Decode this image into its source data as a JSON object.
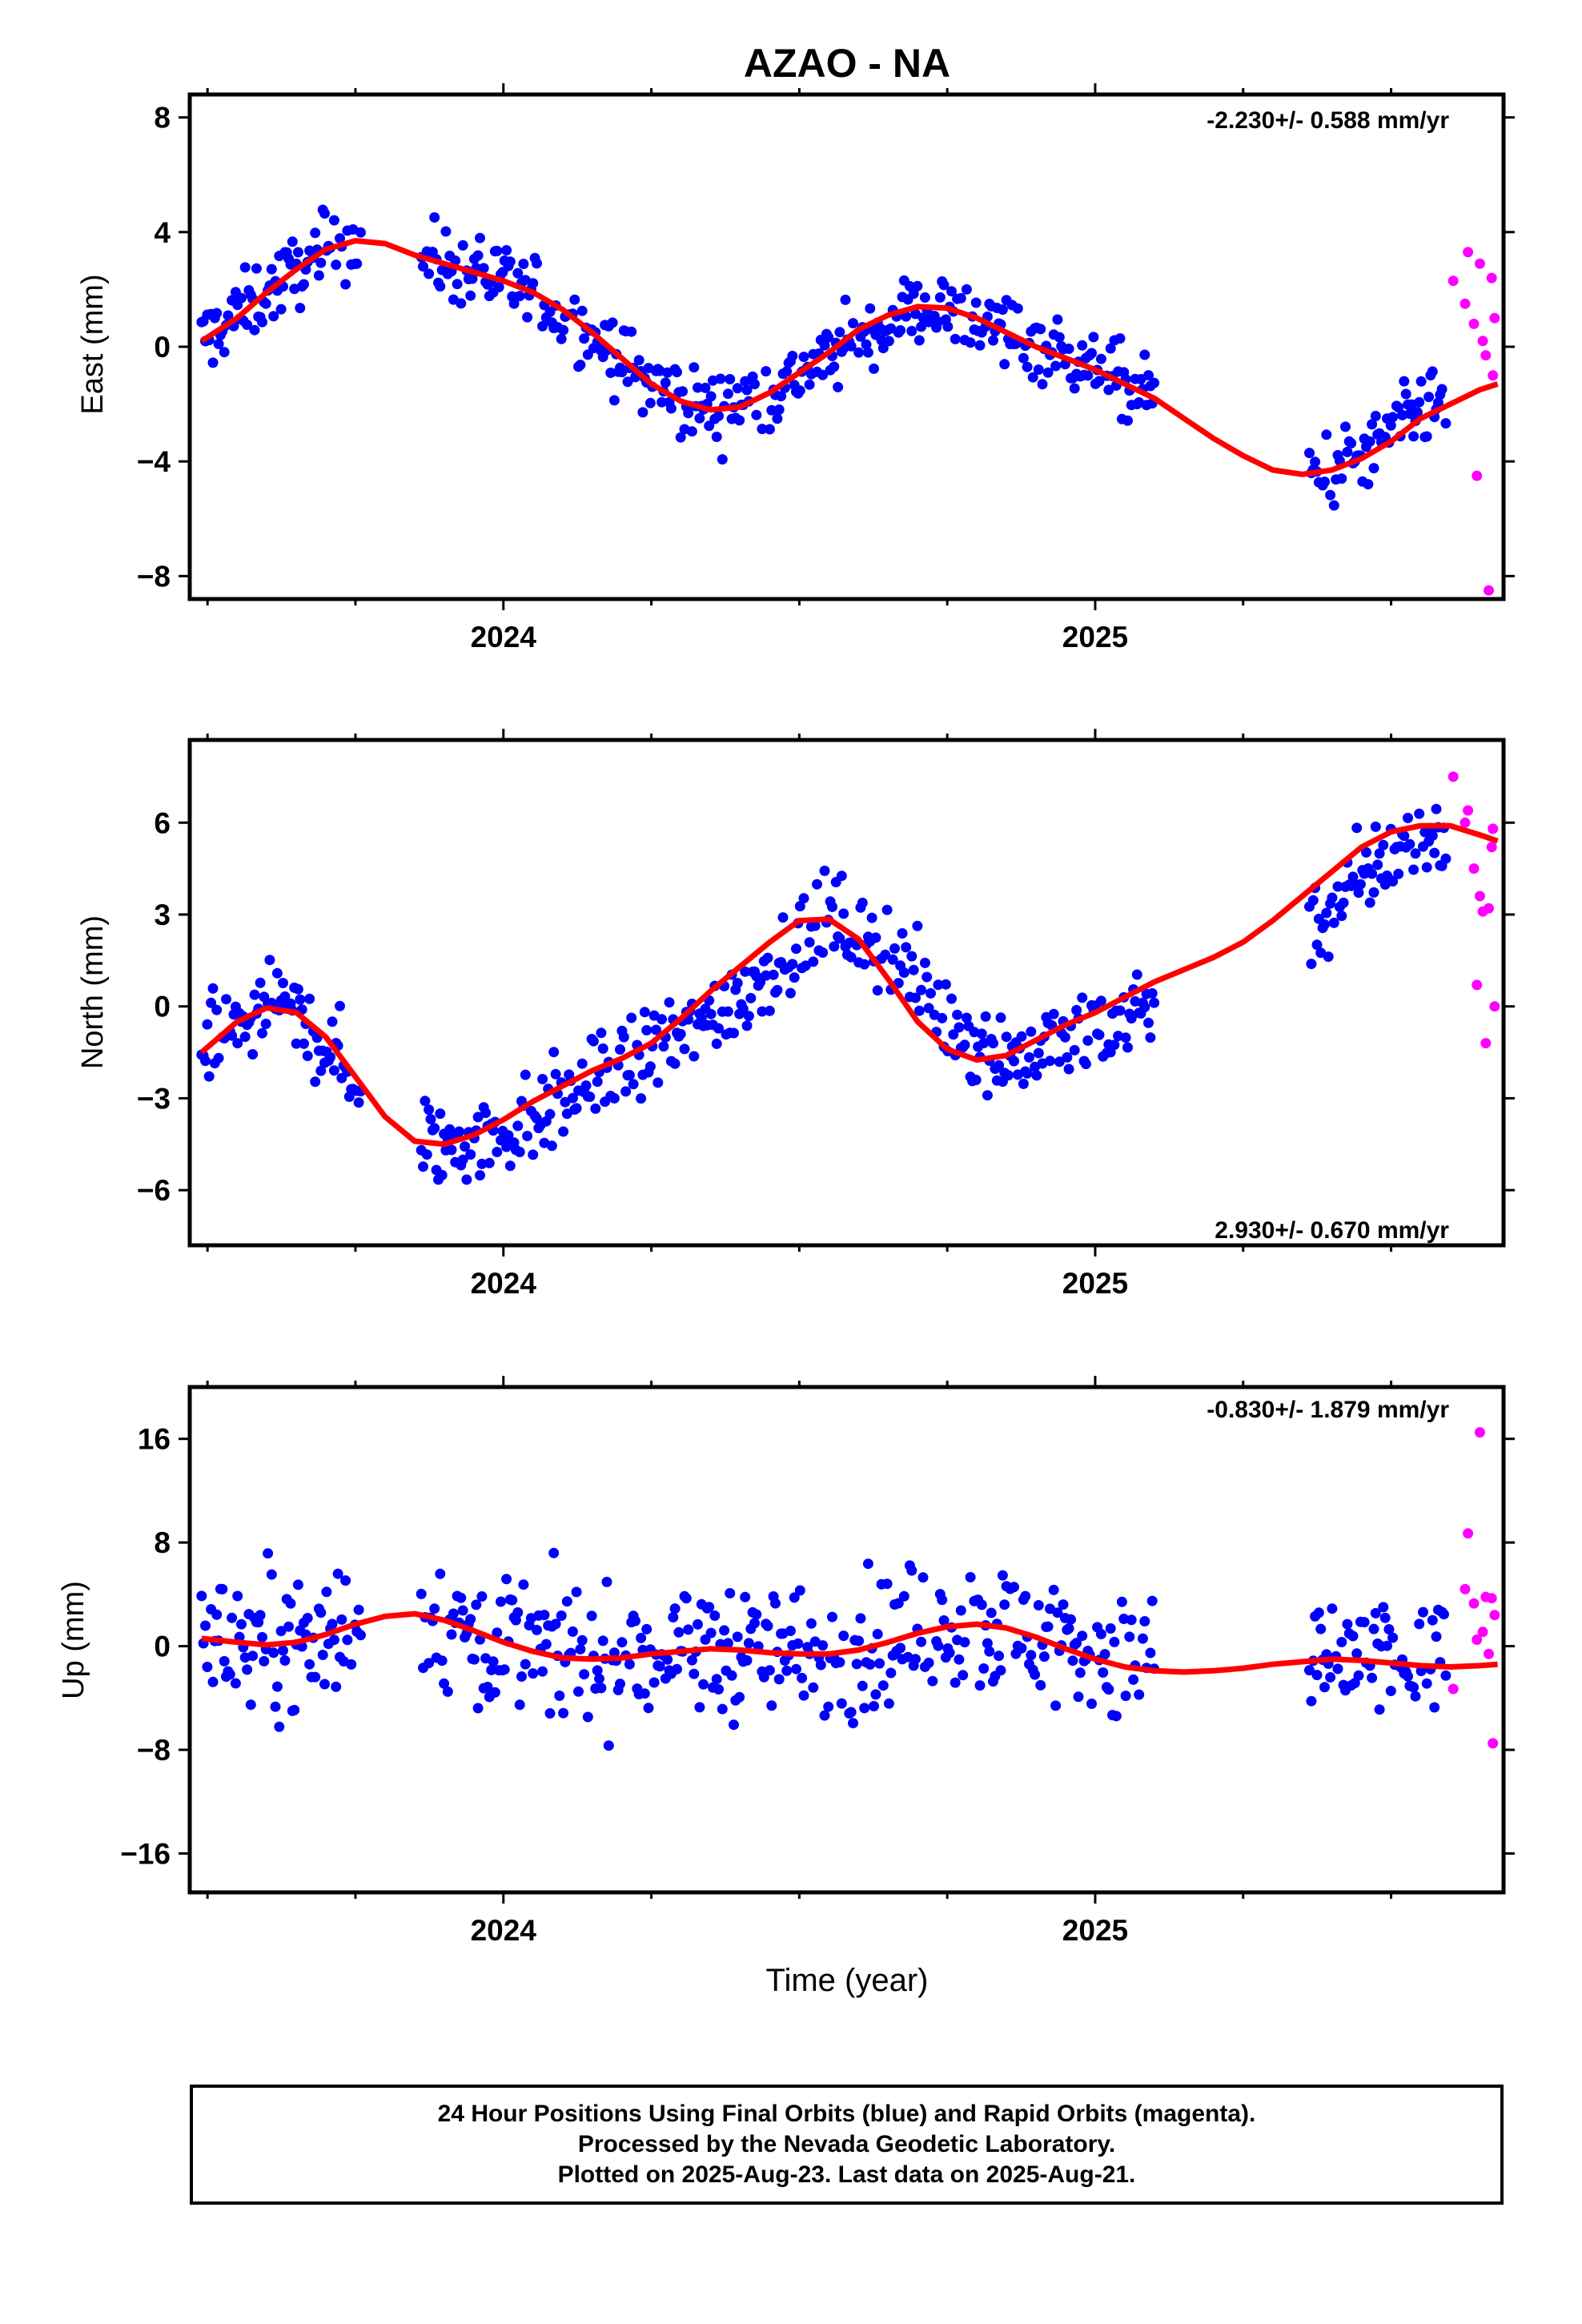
{
  "title": "AZAO - NA",
  "footer": {
    "line1": "24 Hour Positions Using Final Orbits (blue) and Rapid Orbits (magenta).",
    "line2": "Processed by the Nevada Geodetic Laboratory.",
    "line3": "Plotted on 2025-Aug-23. Last data on 2025-Aug-21."
  },
  "colors": {
    "final": "#0000ff",
    "rapid": "#ff00ff",
    "model": "#ff0000",
    "axes": "#000000"
  },
  "chart_data": [
    {
      "type": "scatter",
      "ylabel": "East (mm)",
      "rate_text": "-2.230+/- 0.588 mm/yr",
      "xlim": [
        2023.47,
        2025.69
      ],
      "ylim": [
        -8.8,
        8.8
      ],
      "yticks": [
        -8,
        -4,
        0,
        4,
        8
      ],
      "xticks": [
        {
          "value": 2024.0,
          "label": "2024"
        },
        {
          "value": 2025.0,
          "label": "2025"
        }
      ],
      "series": [
        {
          "name": "Final Orbits",
          "color": "#0000ff",
          "gap": [
            2023.76,
            2023.86,
            2025.1,
            2025.36
          ],
          "trend": [
            [
              2023.49,
              0.2
            ],
            [
              2023.6,
              1.9
            ],
            [
              2023.7,
              3.4
            ],
            [
              2023.74,
              3.7
            ],
            [
              2023.85,
              3.2
            ],
            [
              2024.0,
              2.3
            ],
            [
              2024.15,
              0.4
            ],
            [
              2024.25,
              -1.3
            ],
            [
              2024.35,
              -2.2
            ],
            [
              2024.45,
              -1.6
            ],
            [
              2024.58,
              0.0
            ],
            [
              2024.7,
              1.4
            ],
            [
              2024.8,
              1.0
            ],
            [
              2024.95,
              -0.3
            ],
            [
              2025.1,
              -1.8
            ],
            [
              2025.25,
              -3.7
            ],
            [
              2025.37,
              -4.4
            ],
            [
              2025.45,
              -3.9
            ],
            [
              2025.55,
              -2.3
            ],
            [
              2025.6,
              -2.0
            ]
          ],
          "spread": 1.2
        },
        {
          "name": "Rapid Orbits",
          "color": "#ff00ff",
          "points": [
            [
              2025.605,
              2.3
            ],
            [
              2025.625,
              1.5
            ],
            [
              2025.63,
              3.3
            ],
            [
              2025.64,
              0.8
            ],
            [
              2025.645,
              -4.5
            ],
            [
              2025.65,
              2.9
            ],
            [
              2025.655,
              0.2
            ],
            [
              2025.66,
              -0.3
            ],
            [
              2025.665,
              -8.5
            ],
            [
              2025.67,
              2.4
            ],
            [
              2025.672,
              -1.0
            ],
            [
              2025.675,
              1.0
            ]
          ]
        },
        {
          "name": "Model",
          "color": "#ff0000",
          "x": [
            2023.49,
            2023.55,
            2023.6,
            2023.65,
            2023.7,
            2023.75,
            2023.8,
            2023.85,
            2023.9,
            2023.95,
            2024.0,
            2024.05,
            2024.1,
            2024.15,
            2024.2,
            2024.25,
            2024.3,
            2024.35,
            2024.4,
            2024.45,
            2024.5,
            2024.55,
            2024.6,
            2024.65,
            2024.7,
            2024.75,
            2024.8,
            2024.85,
            2024.9,
            2024.95,
            2025.0,
            2025.05,
            2025.1,
            2025.15,
            2025.2,
            2025.25,
            2025.3,
            2025.35,
            2025.4,
            2025.45,
            2025.5,
            2025.55,
            2025.6,
            2025.65,
            2025.68
          ],
          "y": [
            0.2,
            1.0,
            1.9,
            2.7,
            3.4,
            3.7,
            3.6,
            3.2,
            2.9,
            2.6,
            2.3,
            1.9,
            1.3,
            0.5,
            -0.4,
            -1.3,
            -1.9,
            -2.2,
            -2.1,
            -1.6,
            -0.9,
            -0.2,
            0.6,
            1.1,
            1.4,
            1.35,
            1.0,
            0.5,
            0.0,
            -0.4,
            -0.8,
            -1.3,
            -1.8,
            -2.5,
            -3.2,
            -3.8,
            -4.3,
            -4.45,
            -4.3,
            -3.9,
            -3.3,
            -2.5,
            -2.0,
            -1.5,
            -1.3
          ]
        }
      ]
    },
    {
      "type": "scatter",
      "ylabel": "North (mm)",
      "rate_text": "2.930+/- 0.670 mm/yr",
      "xlim": [
        2023.47,
        2025.69
      ],
      "ylim": [
        -7.8,
        8.7
      ],
      "yticks": [
        -6,
        -3,
        0,
        3,
        6
      ],
      "xticks": [
        {
          "value": 2024.0,
          "label": "2024"
        },
        {
          "value": 2025.0,
          "label": "2025"
        }
      ],
      "series": [
        {
          "name": "Final Orbits",
          "color": "#0000ff",
          "gap": [
            2023.76,
            2023.86,
            2025.1,
            2025.36
          ],
          "trend": [
            [
              2023.49,
              -1.6
            ],
            [
              2023.55,
              -0.6
            ],
            [
              2023.62,
              0.0
            ],
            [
              2023.7,
              -1.2
            ],
            [
              2023.78,
              -3.3
            ],
            [
              2023.9,
              -4.6
            ],
            [
              2024.0,
              -4.1
            ],
            [
              2024.15,
              -2.5
            ],
            [
              2024.25,
              -1.5
            ],
            [
              2024.38,
              0.0
            ],
            [
              2024.45,
              1.3
            ],
            [
              2024.55,
              2.9
            ],
            [
              2024.65,
              1.8
            ],
            [
              2024.75,
              -0.4
            ],
            [
              2024.85,
              -1.7
            ],
            [
              2024.95,
              -1.3
            ],
            [
              2025.1,
              0.3
            ],
            [
              2025.3,
              1.7
            ],
            [
              2025.4,
              3.2
            ],
            [
              2025.5,
              5.0
            ],
            [
              2025.6,
              5.9
            ]
          ],
          "spread": 1.4
        },
        {
          "name": "Rapid Orbits",
          "color": "#ff00ff",
          "points": [
            [
              2025.605,
              7.5
            ],
            [
              2025.625,
              6.0
            ],
            [
              2025.63,
              6.4
            ],
            [
              2025.64,
              4.5
            ],
            [
              2025.645,
              0.7
            ],
            [
              2025.65,
              3.6
            ],
            [
              2025.655,
              3.1
            ],
            [
              2025.66,
              -1.2
            ],
            [
              2025.665,
              3.2
            ],
            [
              2025.67,
              5.2
            ],
            [
              2025.672,
              5.8
            ],
            [
              2025.675,
              0.0
            ]
          ]
        },
        {
          "name": "Model",
          "color": "#ff0000",
          "x": [
            2023.49,
            2023.55,
            2023.6,
            2023.65,
            2023.7,
            2023.75,
            2023.8,
            2023.85,
            2023.9,
            2023.95,
            2024.0,
            2024.05,
            2024.1,
            2024.15,
            2024.2,
            2024.25,
            2024.3,
            2024.35,
            2024.4,
            2024.45,
            2024.5,
            2024.55,
            2024.6,
            2024.65,
            2024.7,
            2024.75,
            2024.8,
            2024.85,
            2024.9,
            2024.95,
            2025.0,
            2025.05,
            2025.1,
            2025.15,
            2025.2,
            2025.25,
            2025.3,
            2025.35,
            2025.4,
            2025.45,
            2025.5,
            2025.55,
            2025.6,
            2025.65,
            2025.68
          ],
          "y": [
            -1.5,
            -0.5,
            -0.05,
            -0.2,
            -1.0,
            -2.3,
            -3.6,
            -4.4,
            -4.5,
            -4.2,
            -3.7,
            -3.1,
            -2.6,
            -2.1,
            -1.7,
            -1.2,
            -0.4,
            0.5,
            1.3,
            2.1,
            2.8,
            2.85,
            2.2,
            0.9,
            -0.5,
            -1.4,
            -1.75,
            -1.6,
            -1.1,
            -0.6,
            -0.2,
            0.3,
            0.8,
            1.2,
            1.6,
            2.1,
            2.8,
            3.6,
            4.4,
            5.2,
            5.7,
            5.9,
            5.9,
            5.6,
            5.4
          ]
        }
      ]
    },
    {
      "type": "scatter",
      "ylabel": "Up (mm)",
      "rate_text": "-0.830+/- 1.879 mm/yr",
      "xlim": [
        2023.47,
        2025.69
      ],
      "ylim": [
        -19,
        20
      ],
      "yticks": [
        -16,
        -8,
        0,
        8,
        16
      ],
      "xticks": [
        {
          "value": 2024.0,
          "label": "2024"
        },
        {
          "value": 2025.0,
          "label": "2025"
        }
      ],
      "xlabel": "Time (year)",
      "series": [
        {
          "name": "Final Orbits",
          "color": "#0000ff",
          "gap": [
            2023.76,
            2023.86,
            2025.1,
            2025.36
          ],
          "trend": [
            [
              2023.49,
              0.6
            ],
            [
              2023.65,
              0.3
            ],
            [
              2023.75,
              1.8
            ],
            [
              2023.85,
              2.5
            ],
            [
              2024.0,
              0.3
            ],
            [
              2024.15,
              -1.0
            ],
            [
              2024.3,
              -0.5
            ],
            [
              2024.4,
              -0.2
            ],
            [
              2024.55,
              -0.6
            ],
            [
              2024.65,
              0.4
            ],
            [
              2024.8,
              1.7
            ],
            [
              2024.95,
              0.4
            ],
            [
              2025.1,
              -1.8
            ],
            [
              2025.3,
              -1.5
            ],
            [
              2025.45,
              -1.1
            ],
            [
              2025.6,
              -1.6
            ]
          ],
          "spread": 5.0
        },
        {
          "name": "Rapid Orbits",
          "color": "#ff00ff",
          "points": [
            [
              2025.605,
              -3.3
            ],
            [
              2025.625,
              4.4
            ],
            [
              2025.63,
              8.7
            ],
            [
              2025.64,
              3.3
            ],
            [
              2025.645,
              0.5
            ],
            [
              2025.65,
              16.5
            ],
            [
              2025.655,
              1.1
            ],
            [
              2025.66,
              3.8
            ],
            [
              2025.665,
              -0.6
            ],
            [
              2025.67,
              3.7
            ],
            [
              2025.672,
              -7.5
            ],
            [
              2025.675,
              2.4
            ]
          ]
        },
        {
          "name": "Model",
          "color": "#ff0000",
          "x": [
            2023.49,
            2023.55,
            2023.6,
            2023.65,
            2023.7,
            2023.75,
            2023.8,
            2023.85,
            2023.9,
            2023.95,
            2024.0,
            2024.05,
            2024.1,
            2024.15,
            2024.2,
            2024.25,
            2024.3,
            2024.35,
            2024.4,
            2024.45,
            2024.5,
            2024.55,
            2024.6,
            2024.65,
            2024.7,
            2024.75,
            2024.8,
            2024.85,
            2024.9,
            2024.95,
            2025.0,
            2025.05,
            2025.1,
            2025.15,
            2025.2,
            2025.25,
            2025.3,
            2025.35,
            2025.4,
            2025.45,
            2025.5,
            2025.55,
            2025.6,
            2025.65,
            2025.68
          ],
          "y": [
            0.6,
            0.3,
            0.1,
            0.3,
            0.9,
            1.7,
            2.3,
            2.5,
            2.0,
            1.2,
            0.3,
            -0.4,
            -0.9,
            -1.0,
            -0.9,
            -0.6,
            -0.4,
            -0.2,
            -0.3,
            -0.5,
            -0.6,
            -0.6,
            -0.3,
            0.3,
            1.0,
            1.5,
            1.7,
            1.4,
            0.7,
            -0.2,
            -1.0,
            -1.6,
            -1.9,
            -2.0,
            -1.9,
            -1.7,
            -1.4,
            -1.2,
            -1.0,
            -1.1,
            -1.3,
            -1.5,
            -1.6,
            -1.5,
            -1.4
          ]
        }
      ]
    }
  ]
}
